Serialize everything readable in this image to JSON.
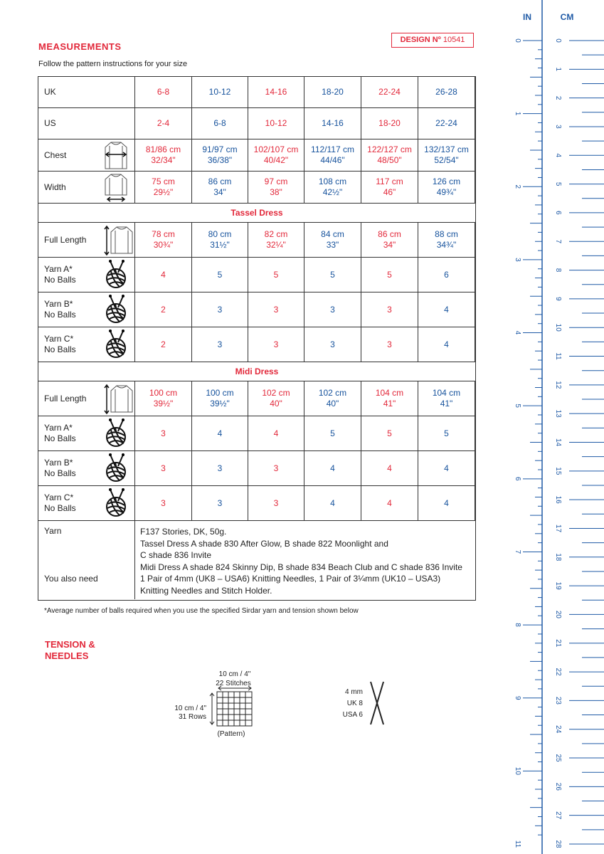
{
  "header": {
    "title": "MEASUREMENTS",
    "design_label": "DESIGN Nº",
    "design_number": "10541",
    "subtitle": "Follow the pattern instructions for your size"
  },
  "size_rows": [
    {
      "label": "UK",
      "cells": [
        "6-8",
        "10-12",
        "14-16",
        "18-20",
        "22-24",
        "26-28"
      ]
    },
    {
      "label": "US",
      "cells": [
        "2-4",
        "6-8",
        "10-12",
        "14-16",
        "18-20",
        "22-24"
      ]
    },
    {
      "label": "Chest",
      "cells": [
        [
          "81/86 cm",
          "32/34\""
        ],
        [
          "91/97 cm",
          "36/38\""
        ],
        [
          "102/107 cm",
          "40/42\""
        ],
        [
          "112/117 cm",
          "44/46\""
        ],
        [
          "122/127 cm",
          "48/50\""
        ],
        [
          "132/137 cm",
          "52/54\""
        ]
      ]
    },
    {
      "label": "Width",
      "cells": [
        [
          "75 cm",
          "29½\""
        ],
        [
          "86 cm",
          "34\""
        ],
        [
          "97 cm",
          "38\""
        ],
        [
          "108 cm",
          "42½\""
        ],
        [
          "117 cm",
          "46\""
        ],
        [
          "126 cm",
          "49¾\""
        ]
      ]
    }
  ],
  "sections": [
    {
      "title": "Tassel Dress",
      "length": {
        "label": "Full Length",
        "cells": [
          [
            "78 cm",
            "30¾\""
          ],
          [
            "80 cm",
            "31½\""
          ],
          [
            "82 cm",
            "32¼\""
          ],
          [
            "84 cm",
            "33\""
          ],
          [
            "86 cm",
            "34\""
          ],
          [
            "88 cm",
            "34¾\""
          ]
        ]
      },
      "yarns": [
        {
          "label": [
            "Yarn A*",
            "No Balls"
          ],
          "cells": [
            4,
            5,
            5,
            5,
            5,
            6
          ]
        },
        {
          "label": [
            "Yarn B*",
            "No Balls"
          ],
          "cells": [
            2,
            3,
            3,
            3,
            3,
            4
          ]
        },
        {
          "label": [
            "Yarn C*",
            "No Balls"
          ],
          "cells": [
            2,
            3,
            3,
            3,
            3,
            4
          ]
        }
      ]
    },
    {
      "title": "Midi Dress",
      "length": {
        "label": "Full Length",
        "cells": [
          [
            "100 cm",
            "39½\""
          ],
          [
            "100 cm",
            "39½\""
          ],
          [
            "102 cm",
            "40\""
          ],
          [
            "102 cm",
            "40\""
          ],
          [
            "104 cm",
            "41\""
          ],
          [
            "104 cm",
            "41\""
          ]
        ]
      },
      "yarns": [
        {
          "label": [
            "Yarn A*",
            "No Balls"
          ],
          "cells": [
            3,
            4,
            4,
            5,
            5,
            5
          ]
        },
        {
          "label": [
            "Yarn B*",
            "No Balls"
          ],
          "cells": [
            3,
            3,
            3,
            4,
            4,
            4
          ]
        },
        {
          "label": [
            "Yarn C*",
            "No Balls"
          ],
          "cells": [
            3,
            3,
            3,
            4,
            4,
            4
          ]
        }
      ]
    }
  ],
  "yarn_row": {
    "label": "Yarn",
    "also_label": "You also need",
    "lines": [
      "F137 Stories, DK, 50g.",
      "Tassel Dress A shade 830 After Glow, B shade 822 Moonlight and",
      "C shade 836 Invite",
      "Midi Dress A shade 824 Skinny Dip, B shade 834 Beach Club and C shade 836 Invite"
    ],
    "needs": [
      "1 Pair of 4mm (UK8 – USA6) Knitting Needles, 1 Pair of 3¼mm (UK10 – USA3)",
      "Knitting Needles and Stitch Holder."
    ]
  },
  "footnote": "*Average number of balls required when you use the specified Sirdar yarn and tension shown below",
  "tension": {
    "title": [
      "TENSION &",
      "NEEDLES"
    ],
    "width": "10 cm / 4\"",
    "stitches": "22 Stitches",
    "height": "10 cm / 4\"",
    "rows": "31 Rows",
    "pattern": "(Pattern)",
    "needle_sizes": [
      "4 mm",
      "UK 8",
      "USA 6"
    ]
  },
  "ruler": {
    "in_label": "IN",
    "cm_label": "CM",
    "inches": [
      0,
      1,
      2,
      3,
      4,
      5,
      6,
      7,
      8,
      9,
      10,
      11
    ],
    "cm": [
      0,
      1,
      2,
      3,
      4,
      5,
      6,
      7,
      8,
      9,
      10,
      11,
      12,
      13,
      14,
      15,
      16,
      17,
      18,
      19,
      20,
      21,
      22,
      23,
      24,
      25,
      26,
      27,
      28
    ]
  }
}
